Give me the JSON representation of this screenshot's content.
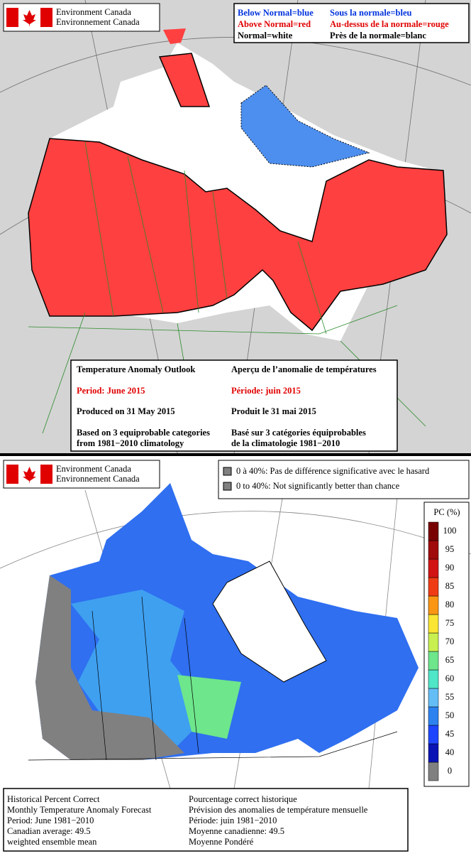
{
  "top": {
    "logo": [
      "Environment Canada",
      "Environnement Canada"
    ],
    "legend": [
      {
        "en": "Below Normal=blue",
        "fr": "Sous la normale=bleu"
      },
      {
        "en": "Above Normal=red",
        "fr": "Au-dessus de la normale=rouge"
      },
      {
        "en": "Normal=white",
        "fr": "Près de la normale=blanc"
      }
    ],
    "outlook": [
      {
        "en": [
          "Temperature Anomaly Outlook"
        ],
        "fr": [
          "Aperçu de l’anomalie de températures"
        ]
      },
      {
        "en": [
          "Period: June 2015"
        ],
        "fr": [
          "Période: juin 2015"
        ]
      },
      {
        "en": [
          "Produced on 31 May 2015"
        ],
        "fr": [
          "Produit le 31 mai 2015"
        ]
      },
      {
        "en": [
          "Based on 3 equiprobable categories",
          "from 1981−2010 climatology"
        ],
        "fr": [
          "Basé sur 3 catégories équiprobables",
          "de la climatologie 1981−2010"
        ]
      }
    ]
  },
  "bottom": {
    "logo": [
      "Environment Canada",
      "Environnement Canada"
    ],
    "legend": [
      "0 à 40%: Pas de différence significative avec le hasard",
      "0 to 40%: Not significantly better than chance"
    ],
    "colorbar": {
      "title": "PC (%)",
      "ticks": [
        0,
        40,
        45,
        50,
        55,
        60,
        65,
        70,
        75,
        80,
        85,
        90,
        95,
        100
      ],
      "colors": [
        "#808080",
        "#0a14b4",
        "#1e46ff",
        "#2d82f0",
        "#64bef5",
        "#50e6c8",
        "#6ee68c",
        "#c8f050",
        "#fae632",
        "#fa9614",
        "#f03c14",
        "#d21414",
        "#a00a0a",
        "#780000"
      ]
    },
    "info": {
      "en": [
        "Historical Percent Correct",
        "Monthly Temperature Anomaly Forecast",
        "Period: June 1981−2010",
        "Canadian average: 49.5",
        "weighted ensemble mean"
      ],
      "fr": [
        "Pourcentage correct historique",
        "Prévision des anomalies de température mensuelle",
        "Période: juin 1981−2010",
        "Moyenne canadienne: 49.5",
        "Moyenne Pondéré"
      ]
    }
  }
}
